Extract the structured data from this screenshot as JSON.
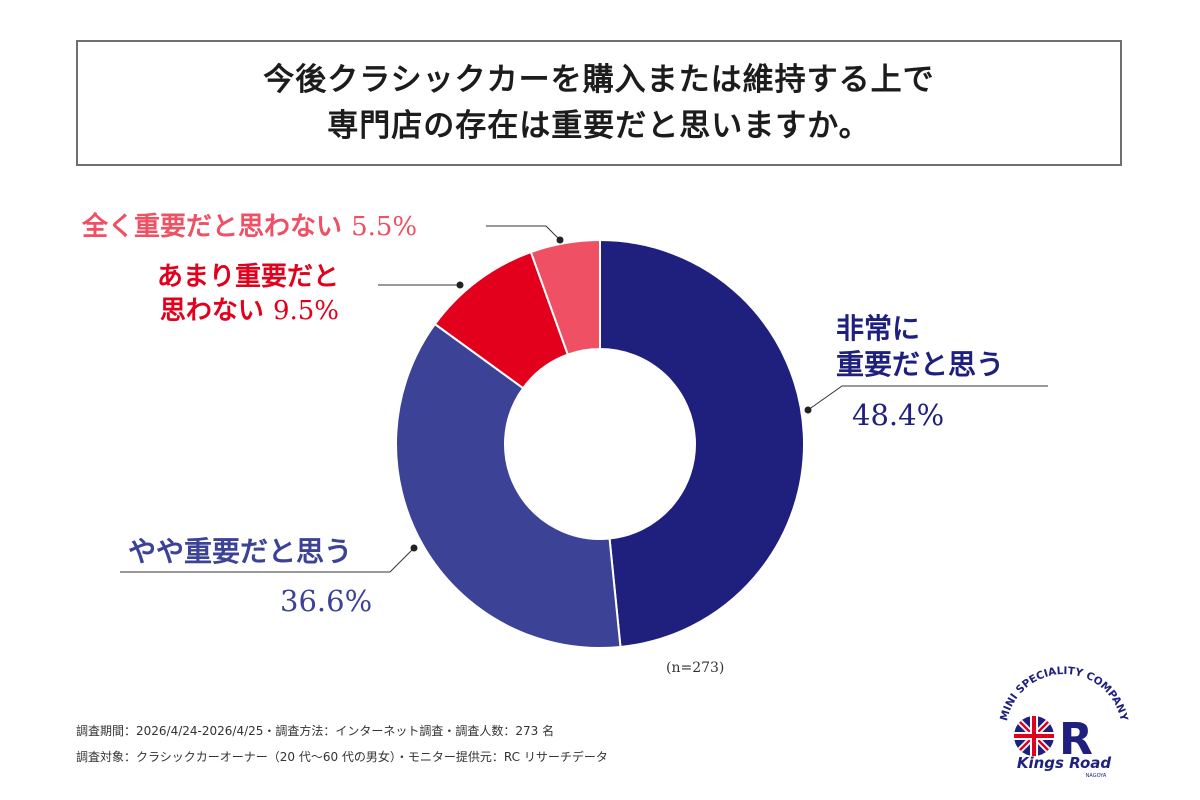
{
  "title": {
    "line1": "今後クラシックカーを購入または維持する上で",
    "line2": "専門店の存在は重要だと思いますか。"
  },
  "chart_data": {
    "type": "pie",
    "donut": true,
    "unit": "%",
    "sample_size_label": "(n=273)",
    "slices": [
      {
        "label": "非常に重要だと思う",
        "value": 48.4,
        "value_label": "48.4%",
        "color": "#1f1f7e"
      },
      {
        "label": "やや重要だと思う",
        "value": 36.6,
        "value_label": "36.6%",
        "color": "#3c4296"
      },
      {
        "label": "あまり重要だと思わない",
        "value": 9.5,
        "value_label": "9.5%",
        "color": "#e2001c"
      },
      {
        "label": "全く重要だと思わない",
        "value": 5.5,
        "value_label": "5.5%",
        "color": "#ef5064"
      }
    ]
  },
  "labels": {
    "strong_line1": "非常に",
    "strong_line2": "重要だと思う",
    "strong_pct": "48.4%",
    "some": "やや重要だと思う",
    "some_pct": "36.6%",
    "not_line1": "あまり重要だと",
    "not_line2": "思わない",
    "not_pct": "9.5%",
    "none": "全く重要だと思わない",
    "none_pct": "5.5%"
  },
  "footer": {
    "line1": "調査期間：2026/4/24-2026/4/25・調査方法：インターネット調査・調査人数：273 名",
    "line2": "調査対象：クラシックカーオーナー（20 代〜60 代の男女）・モニター提供元：RC リサーチデータ"
  },
  "logo": {
    "arc_text": "MINI SPECIALITY COMPANY",
    "name": "Kings Road",
    "city": "NAGOYA"
  }
}
